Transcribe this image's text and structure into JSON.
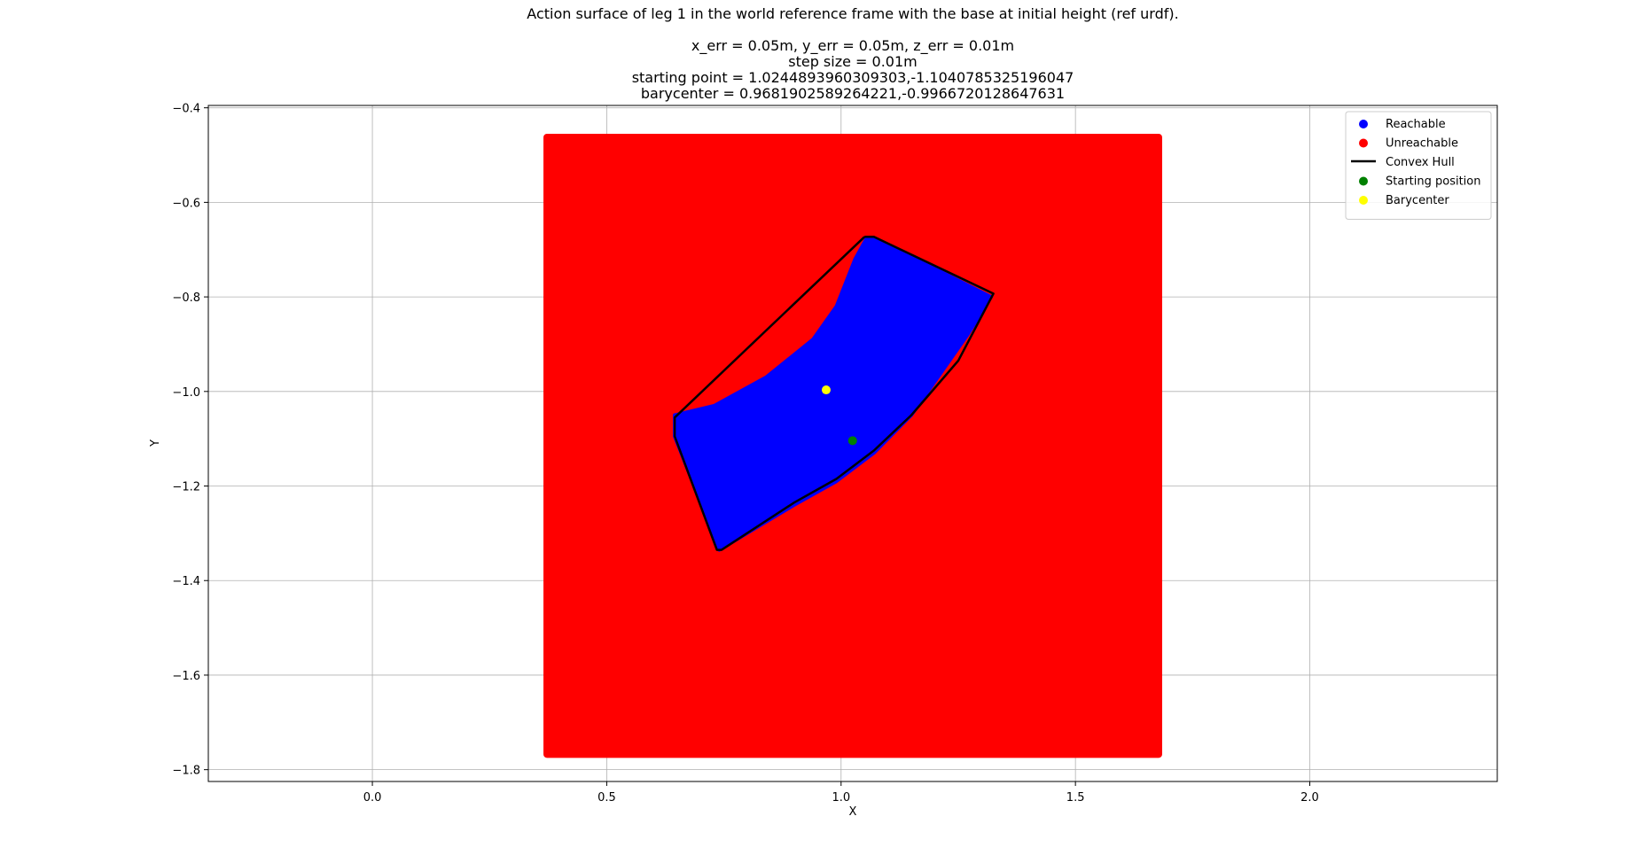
{
  "figure": {
    "title_lines": [
      "Action surface of leg 1 in the world reference frame with the base at initial height (ref urdf).",
      "",
      "x_err = 0.05m, y_err = 0.05m, z_err = 0.01m",
      "step size = 0.01m",
      "starting point = 1.0244893960309303,-1.1040785325196047",
      "barycenter = 0.9681902589264221,-0.9966720128647631"
    ]
  },
  "chart_data": {
    "type": "scatter",
    "xlabel": "X",
    "ylabel": "Y",
    "xlim": [
      -0.35,
      2.4
    ],
    "ylim": [
      -1.825,
      -0.395
    ],
    "xticks": [
      0.0,
      0.5,
      1.0,
      1.5,
      2.0
    ],
    "xtick_labels": [
      "0.0",
      "0.5",
      "1.0",
      "1.5",
      "2.0"
    ],
    "yticks": [
      -0.4,
      -0.6,
      -0.8,
      -1.0,
      -1.2,
      -1.4,
      -1.6,
      -1.8
    ],
    "ytick_labels": [
      "−0.4",
      "−0.6",
      "−0.8",
      "−1.0",
      "−1.2",
      "−1.4",
      "−1.6",
      "−1.8"
    ],
    "grid": true,
    "legend_position": "top-right",
    "series": [
      {
        "name": "Unreachable",
        "color": "#ff0000",
        "kind": "grid-region",
        "x_range": [
          0.365,
          1.685
        ],
        "y_range": [
          -1.775,
          -0.455
        ],
        "step": 0.01
      },
      {
        "name": "Reachable",
        "color": "#0000ff",
        "kind": "region",
        "boundary": [
          [
            1.055,
            -0.675
          ],
          [
            1.07,
            -0.675
          ],
          [
            1.2,
            -0.74
          ],
          [
            1.32,
            -0.8
          ],
          [
            1.27,
            -0.88
          ],
          [
            1.15,
            -1.05
          ],
          [
            1.07,
            -1.13
          ],
          [
            0.99,
            -1.19
          ],
          [
            0.9,
            -1.24
          ],
          [
            0.74,
            -1.335
          ],
          [
            0.645,
            -1.095
          ],
          [
            0.645,
            -1.05
          ],
          [
            0.73,
            -1.03
          ],
          [
            0.84,
            -0.97
          ],
          [
            0.94,
            -0.89
          ],
          [
            0.99,
            -0.82
          ],
          [
            1.03,
            -0.72
          ]
        ]
      },
      {
        "name": "Convex Hull",
        "color": "#000000",
        "kind": "line",
        "points": [
          [
            1.05,
            -0.673
          ],
          [
            1.07,
            -0.673
          ],
          [
            1.325,
            -0.793
          ],
          [
            1.25,
            -0.935
          ],
          [
            1.15,
            -1.05
          ],
          [
            1.07,
            -1.125
          ],
          [
            0.99,
            -1.185
          ],
          [
            0.9,
            -1.235
          ],
          [
            0.745,
            -1.335
          ],
          [
            0.735,
            -1.335
          ],
          [
            0.645,
            -1.095
          ],
          [
            0.645,
            -1.055
          ],
          [
            1.05,
            -0.673
          ]
        ]
      },
      {
        "name": "Starting position",
        "color": "#008000",
        "kind": "point",
        "points": [
          [
            1.0244893960309303,
            -1.1040785325196047
          ]
        ]
      },
      {
        "name": "Barycenter",
        "color": "#ffff00",
        "kind": "point",
        "points": [
          [
            0.9681902589264221,
            -0.9966720128647631
          ]
        ]
      }
    ]
  }
}
